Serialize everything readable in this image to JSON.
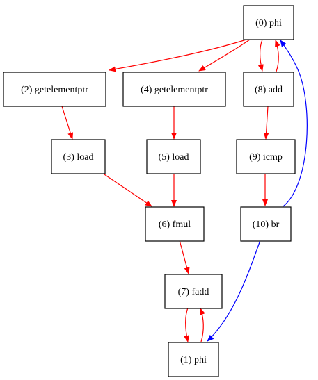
{
  "nodes": [
    {
      "id": "n0",
      "label": "(0) phi"
    },
    {
      "id": "n1",
      "label": "(1) phi"
    },
    {
      "id": "n2",
      "label": "(2) getelementptr"
    },
    {
      "id": "n3",
      "label": "(3) load"
    },
    {
      "id": "n4",
      "label": "(4) getelementptr"
    },
    {
      "id": "n5",
      "label": "(5) load"
    },
    {
      "id": "n6",
      "label": "(6) fmul"
    },
    {
      "id": "n7",
      "label": "(7) fadd"
    },
    {
      "id": "n8",
      "label": "(8) add"
    },
    {
      "id": "n9",
      "label": "(9) icmp"
    },
    {
      "id": "n10",
      "label": "(10) br"
    }
  ],
  "edges": [
    {
      "from": "(0) phi",
      "to": "(2) getelementptr",
      "color": "#ff0000"
    },
    {
      "from": "(0) phi",
      "to": "(4) getelementptr",
      "color": "#ff0000"
    },
    {
      "from": "(0) phi",
      "to": "(8) add",
      "color": "#ff0000"
    },
    {
      "from": "(8) add",
      "to": "(0) phi",
      "color": "#ff0000"
    },
    {
      "from": "(2) getelementptr",
      "to": "(3) load",
      "color": "#ff0000"
    },
    {
      "from": "(4) getelementptr",
      "to": "(5) load",
      "color": "#ff0000"
    },
    {
      "from": "(8) add",
      "to": "(9) icmp",
      "color": "#ff0000"
    },
    {
      "from": "(3) load",
      "to": "(6) fmul",
      "color": "#ff0000"
    },
    {
      "from": "(5) load",
      "to": "(6) fmul",
      "color": "#ff0000"
    },
    {
      "from": "(9) icmp",
      "to": "(10) br",
      "color": "#ff0000"
    },
    {
      "from": "(10) br",
      "to": "(0) phi",
      "color": "#0000ff"
    },
    {
      "from": "(6) fmul",
      "to": "(7) fadd",
      "color": "#ff0000"
    },
    {
      "from": "(10) br",
      "to": "(1) phi",
      "color": "#0000ff"
    },
    {
      "from": "(7) fadd",
      "to": "(1) phi",
      "color": "#ff0000"
    },
    {
      "from": "(1) phi",
      "to": "(7) fadd",
      "color": "#ff0000"
    }
  ]
}
